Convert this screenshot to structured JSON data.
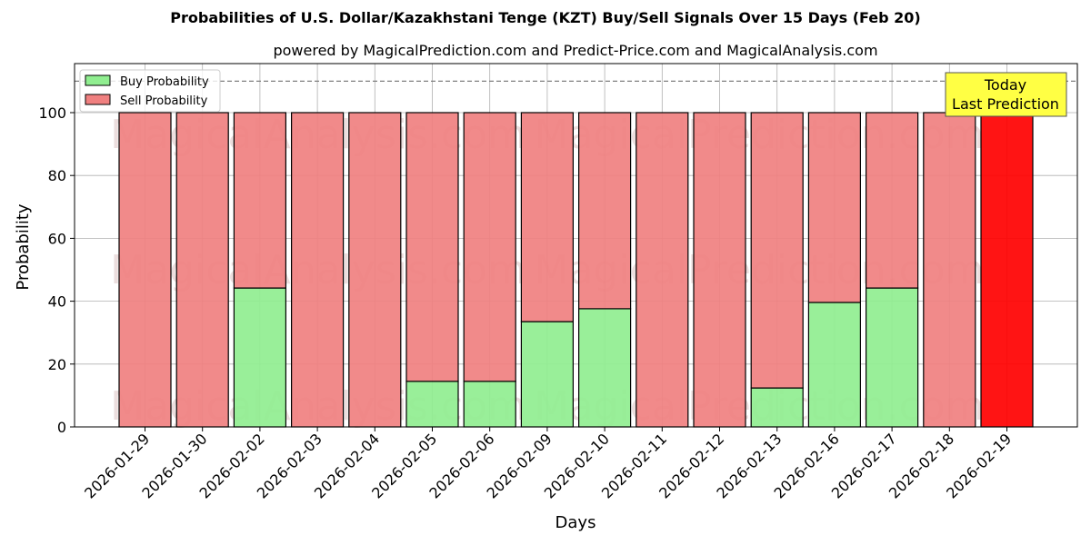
{
  "chart_data": {
    "type": "bar",
    "stacked": true,
    "title": "Probabilities of U.S. Dollar/Kazakhstani Tenge (KZT) Buy/Sell Signals Over 15 Days (Feb 20)",
    "subtitle": "powered by MagicalPrediction.com and Predict-Price.com and MagicalAnalysis.com",
    "xlabel": "Days",
    "ylabel": "Probability",
    "ylim": [
      0,
      115
    ],
    "yticks": [
      0,
      20,
      40,
      60,
      80,
      100
    ],
    "reference_line": {
      "y": 110,
      "style": "dashed"
    },
    "grid": true,
    "legend_position": "upper left",
    "categories": [
      "2026-01-29",
      "2026-01-30",
      "2026-02-02",
      "2026-02-03",
      "2026-02-04",
      "2026-02-05",
      "2026-02-06",
      "2026-02-09",
      "2026-02-10",
      "2026-02-11",
      "2026-02-12",
      "2026-02-13",
      "2026-02-16",
      "2026-02-17",
      "2026-02-18",
      "2026-02-19"
    ],
    "series": [
      {
        "name": "Buy Probability",
        "color": "#90ee90",
        "values": [
          0,
          0,
          44.2,
          0,
          0,
          14.5,
          14.5,
          33.5,
          37.6,
          0,
          0,
          12.4,
          39.6,
          44.2,
          0,
          0
        ]
      },
      {
        "name": "Sell Probability",
        "color": "#f08080",
        "values": [
          100,
          100,
          55.8,
          100,
          100,
          85.5,
          85.5,
          66.5,
          62.4,
          100,
          100,
          87.6,
          60.4,
          55.8,
          100,
          100
        ]
      }
    ],
    "highlight": {
      "category": "2026-02-19",
      "color": "#ff0000",
      "annotation": "Today\nLast Prediction"
    },
    "watermarks": [
      "MagicalAnalysis.com",
      "MagicalPrediction.com"
    ]
  },
  "labels": {
    "title": "Probabilities of U.S. Dollar/Kazakhstani Tenge (KZT) Buy/Sell Signals Over 15 Days (Feb 20)",
    "subtitle": "powered by MagicalPrediction.com and Predict-Price.com and MagicalAnalysis.com",
    "xlabel": "Days",
    "ylabel": "Probability",
    "legend_buy": "Buy Probability",
    "legend_sell": "Sell Probability",
    "annotation_line1": "Today",
    "annotation_line2": "Last Prediction"
  }
}
